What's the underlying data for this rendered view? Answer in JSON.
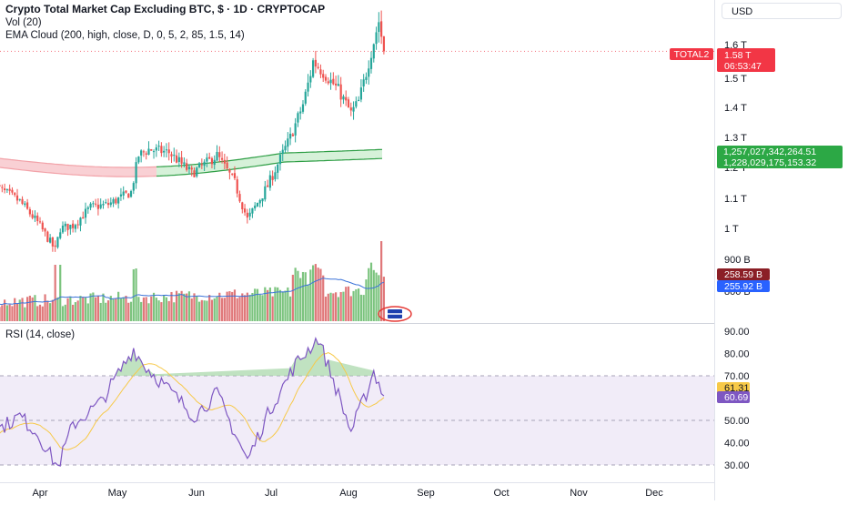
{
  "legend": {
    "title": "Crypto Total Market Cap Excluding BTC, $ · 1D · CRYPTOCAP",
    "vol": "Vol (20)",
    "ema": "EMA Cloud (200, high, close, D, 0, 5, 2, 85, 1.5, 14)",
    "rsi": "RSI (14, close)"
  },
  "currency": "USD",
  "colors": {
    "up": "#26a69a",
    "down": "#ef5350",
    "vol_up": "#7cc47f",
    "vol_down": "#e0787a",
    "vol_ma": "#3b73d9",
    "ema_fill_red": "#f8c8cc",
    "ema_fill_green": "#cfeed2",
    "ema_line_green": "#2e9e45",
    "ema_line_red": "#f2a2a8",
    "rsi_line": "#7e57c2",
    "rsi_ma": "#f7c948",
    "rsi_band": "#ede7f6",
    "price_red_tag": "#f23645",
    "vol_tag_red": "#8b1f26",
    "vol_tag_blue": "#2962ff"
  },
  "labels": {
    "symbol_tag": "TOTAL2",
    "last_price": "1.58 T",
    "countdown": "06:53:47",
    "ema_upper_value": "1,257,027,342,264.51",
    "ema_lower_value": "1,228,029,175,153.32",
    "vol_value": "258.59 B",
    "vol_ma_value": "255.92 B",
    "rsi_value": "61.31",
    "rsi_ma_value": "60.69"
  },
  "chart_data": [
    {
      "type": "candlestick",
      "title": "Crypto Total Market Cap Excluding BTC, $ · 1D · CRYPTOCAP",
      "y_unit": "T",
      "y_ticks": [
        "1.6 T",
        "1.5 T",
        "1.4 T",
        "1.3 T",
        "1.2 T",
        "1.1 T",
        "1 T",
        "900 B",
        "800 B"
      ],
      "x_ticks": [
        "Apr",
        "May",
        "Jun",
        "Jul",
        "Aug",
        "Sep",
        "Oct",
        "Nov",
        "Dec"
      ],
      "close_anchors": [
        {
          "date": "2025-03-14",
          "close": 1.14
        },
        {
          "date": "2025-03-24",
          "close": 1.09
        },
        {
          "date": "2025-03-31",
          "close": 1.02
        },
        {
          "date": "2025-04-07",
          "close": 0.93
        },
        {
          "date": "2025-04-09",
          "close": 1.0
        },
        {
          "date": "2025-04-14",
          "close": 1.01
        },
        {
          "date": "2025-04-21",
          "close": 1.07
        },
        {
          "date": "2025-04-28",
          "close": 1.08
        },
        {
          "date": "2025-05-07",
          "close": 1.12
        },
        {
          "date": "2025-05-10",
          "close": 1.24
        },
        {
          "date": "2025-05-14",
          "close": 1.26
        },
        {
          "date": "2025-05-22",
          "close": 1.25
        },
        {
          "date": "2025-05-31",
          "close": 1.18
        },
        {
          "date": "2025-06-10",
          "close": 1.24
        },
        {
          "date": "2025-06-17",
          "close": 1.15
        },
        {
          "date": "2025-06-22",
          "close": 1.03
        },
        {
          "date": "2025-06-30",
          "close": 1.14
        },
        {
          "date": "2025-07-09",
          "close": 1.3
        },
        {
          "date": "2025-07-14",
          "close": 1.41
        },
        {
          "date": "2025-07-18",
          "close": 1.55
        },
        {
          "date": "2025-07-22",
          "close": 1.52
        },
        {
          "date": "2025-07-28",
          "close": 1.46
        },
        {
          "date": "2025-08-02",
          "close": 1.38
        },
        {
          "date": "2025-08-05",
          "close": 1.42
        },
        {
          "date": "2025-08-09",
          "close": 1.55
        },
        {
          "date": "2025-08-13",
          "close": 1.67
        },
        {
          "date": "2025-08-15",
          "close": 1.58
        }
      ],
      "last_close": "1.58 T",
      "series": [
        {
          "name": "EMA Cloud",
          "upper_start": 1.23,
          "lower_start": 1.2,
          "upper_end": 1.26,
          "lower_end": 1.23
        }
      ]
    },
    {
      "type": "bar",
      "title": "Vol (20)",
      "last_value": "258.59 B",
      "ma_value": "255.92 B"
    },
    {
      "type": "line",
      "title": "RSI (14, close)",
      "y_ticks": [
        "90.00",
        "80.00",
        "70.00",
        "60.00",
        "50.00",
        "40.00",
        "30.00"
      ],
      "bands": [
        30,
        50,
        70
      ],
      "anchors": [
        {
          "date": "2025-03-14",
          "rsi": 45
        },
        {
          "date": "2025-03-24",
          "rsi": 52
        },
        {
          "date": "2025-03-31",
          "rsi": 44
        },
        {
          "date": "2025-04-08",
          "rsi": 29
        },
        {
          "date": "2025-04-14",
          "rsi": 48
        },
        {
          "date": "2025-04-25",
          "rsi": 58
        },
        {
          "date": "2025-05-08",
          "rsi": 82
        },
        {
          "date": "2025-05-12",
          "rsi": 75
        },
        {
          "date": "2025-05-20",
          "rsi": 66
        },
        {
          "date": "2025-06-01",
          "rsi": 52
        },
        {
          "date": "2025-06-10",
          "rsi": 62
        },
        {
          "date": "2025-06-22",
          "rsi": 32
        },
        {
          "date": "2025-07-01",
          "rsi": 55
        },
        {
          "date": "2025-07-11",
          "rsi": 75
        },
        {
          "date": "2025-07-20",
          "rsi": 87
        },
        {
          "date": "2025-07-26",
          "rsi": 68
        },
        {
          "date": "2025-08-02",
          "rsi": 45
        },
        {
          "date": "2025-08-08",
          "rsi": 62
        },
        {
          "date": "2025-08-11",
          "rsi": 72
        },
        {
          "date": "2025-08-15",
          "rsi": 61
        }
      ],
      "series": [
        {
          "name": "RSI",
          "last": "61.31"
        },
        {
          "name": "RSI-based MA",
          "last": "60.69"
        }
      ]
    }
  ]
}
